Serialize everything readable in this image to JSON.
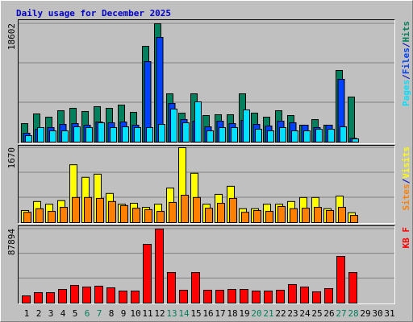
{
  "chart_data": [
    {
      "type": "bar",
      "title": "Daily usage for December 2025",
      "ylim": [
        0,
        18602
      ],
      "yticks": [
        18602
      ],
      "grid_divisions": 3,
      "legend_separator": "/",
      "series": [
        {
          "name": "Hits",
          "color": "#00805c",
          "values": [
            2900,
            4430,
            3920,
            4930,
            5310,
            4810,
            5570,
            5310,
            5820,
            4680,
            15050,
            18602,
            7590,
            4550,
            7590,
            4170,
            4300,
            4300,
            7590,
            4550,
            3920,
            4930,
            4170,
            2660,
            3540,
            2660,
            11260,
            7080,
            0,
            0,
            0
          ]
        },
        {
          "name": "Files",
          "color": "#0040ff",
          "values": [
            1390,
            2020,
            2280,
            2780,
            2910,
            2660,
            3160,
            3040,
            3160,
            2660,
            12650,
            16450,
            6070,
            3540,
            3290,
            2400,
            3290,
            2910,
            3420,
            2780,
            2530,
            3290,
            3040,
            2660,
            2280,
            2660,
            9870,
            600,
            0,
            0,
            0
          ]
        },
        {
          "name": "Pages",
          "color": "#00e0ff",
          "values": [
            1010,
            2280,
            1770,
            1770,
            2400,
            2280,
            3040,
            2280,
            2400,
            2280,
            2280,
            2780,
            5190,
            3040,
            6330,
            1770,
            2280,
            2280,
            5060,
            2020,
            1770,
            2280,
            1770,
            1770,
            2020,
            2020,
            2400,
            500,
            0,
            0,
            0
          ]
        }
      ]
    },
    {
      "type": "bar",
      "ylim": [
        0,
        1670
      ],
      "yticks": [
        1670
      ],
      "grid_divisions": 3,
      "legend_separator": "/",
      "series": [
        {
          "name": "Visits",
          "color": "#ffff00",
          "values": [
            270,
            470,
            410,
            490,
            1290,
            1010,
            1080,
            650,
            410,
            430,
            340,
            410,
            770,
            1670,
            1100,
            410,
            630,
            810,
            310,
            310,
            410,
            410,
            470,
            560,
            560,
            310,
            590,
            220,
            0,
            0,
            0
          ]
        },
        {
          "name": "Sites",
          "color": "#ff8000",
          "values": [
            230,
            310,
            250,
            340,
            560,
            560,
            540,
            470,
            380,
            320,
            290,
            250,
            450,
            610,
            560,
            320,
            430,
            540,
            230,
            270,
            250,
            360,
            310,
            320,
            340,
            270,
            340,
            160,
            0,
            0,
            0
          ]
        }
      ]
    },
    {
      "type": "bar",
      "ylim": [
        0,
        87894
      ],
      "yticks": [
        87894
      ],
      "grid_divisions": 3,
      "categories": [
        "1",
        "2",
        "3",
        "4",
        "5",
        "6",
        "7",
        "8",
        "9",
        "10",
        "11",
        "12",
        "13",
        "14",
        "15",
        "16",
        "17",
        "18",
        "19",
        "20",
        "21",
        "22",
        "23",
        "24",
        "25",
        "26",
        "27",
        "28",
        "29",
        "30",
        "31"
      ],
      "highlight_categories": [
        6,
        7,
        13,
        14,
        20,
        21,
        27,
        28
      ],
      "category_color": "#000000",
      "highlight_color": "#00805c",
      "series": [
        {
          "name": "KB F",
          "color": "#ff0000",
          "values": [
            8600,
            12400,
            12400,
            16200,
            21000,
            19100,
            20100,
            18100,
            14300,
            14300,
            69700,
            87894,
            36300,
            15300,
            36300,
            15300,
            15300,
            16200,
            16200,
            14300,
            14300,
            15300,
            22000,
            19100,
            13400,
            17200,
            55400,
            36300,
            0,
            0,
            0
          ]
        }
      ]
    }
  ]
}
